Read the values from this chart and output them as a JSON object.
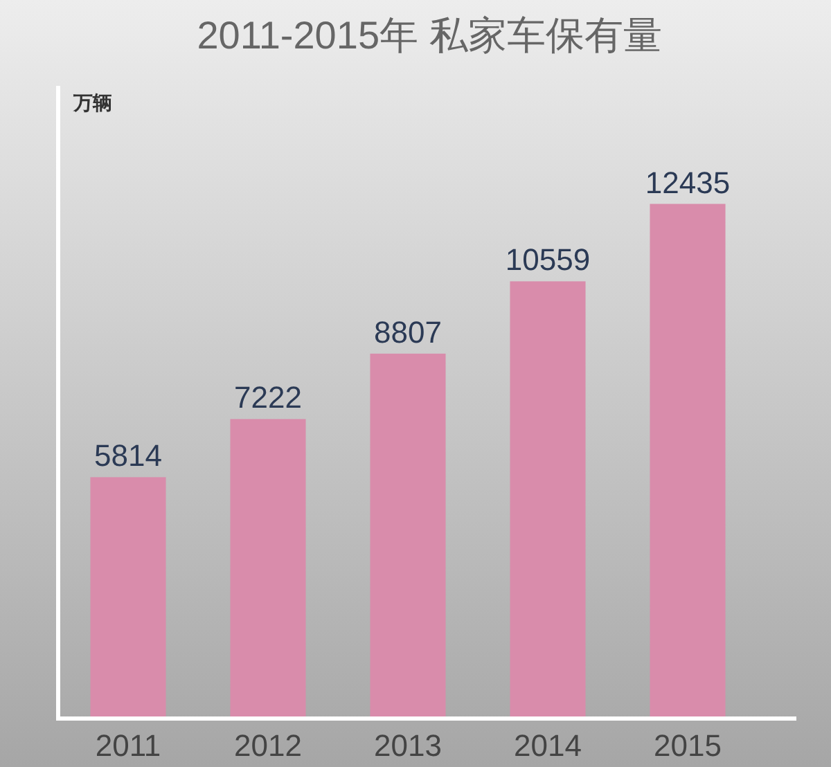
{
  "chart_data": {
    "type": "bar",
    "title": "2011-2015年 私家车保有量",
    "ylabel": "万辆",
    "categories": [
      "2011",
      "2012",
      "2013",
      "2014",
      "2015"
    ],
    "values": [
      5814,
      7222,
      8807,
      10559,
      12435
    ],
    "color": "#d98cab",
    "data_labels": true,
    "tick_labels": "x"
  }
}
